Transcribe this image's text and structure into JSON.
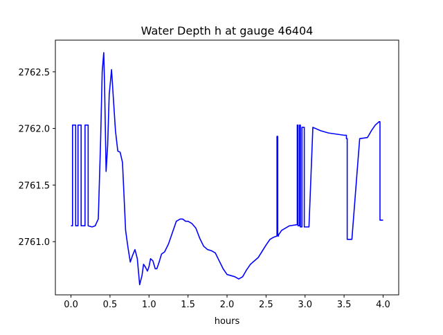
{
  "chart_data": {
    "type": "line",
    "title": "Water Depth h at gauge 46404",
    "xlabel": "hours",
    "ylabel": "",
    "xlim": [
      -0.2,
      4.2
    ],
    "ylim": [
      2760.53,
      2762.78
    ],
    "xticks": [
      0.0,
      0.5,
      1.0,
      1.5,
      2.0,
      2.5,
      3.0,
      3.5,
      4.0
    ],
    "xtick_labels": [
      "0.0",
      "0.5",
      "1.0",
      "1.5",
      "2.0",
      "2.5",
      "3.0",
      "3.5",
      "4.0"
    ],
    "yticks": [
      2761.0,
      2761.5,
      2762.0,
      2762.5
    ],
    "ytick_labels": [
      "2761.0",
      "2761.5",
      "2762.0",
      "2762.5"
    ],
    "grid": false,
    "series": [
      {
        "color": "#0000ff",
        "x": [
          0.0,
          0.02,
          0.02,
          0.06,
          0.06,
          0.09,
          0.09,
          0.13,
          0.13,
          0.18,
          0.18,
          0.22,
          0.22,
          0.27,
          0.31,
          0.35,
          0.38,
          0.4,
          0.42,
          0.43,
          0.45,
          0.47,
          0.49,
          0.52,
          0.54,
          0.57,
          0.6,
          0.63,
          0.66,
          0.68,
          0.7,
          0.73,
          0.76,
          0.79,
          0.82,
          0.85,
          0.88,
          0.91,
          0.93,
          0.95,
          0.98,
          1.0,
          1.02,
          1.05,
          1.08,
          1.1,
          1.13,
          1.16,
          1.2,
          1.25,
          1.3,
          1.35,
          1.4,
          1.43,
          1.47,
          1.5,
          1.55,
          1.6,
          1.65,
          1.7,
          1.75,
          1.8,
          1.85,
          1.9,
          1.95,
          2.0,
          2.05,
          2.1,
          2.15,
          2.2,
          2.25,
          2.3,
          2.4,
          2.5,
          2.55,
          2.6,
          2.64,
          2.64,
          2.65,
          2.65,
          2.66,
          2.66,
          2.7,
          2.8,
          2.9,
          2.9,
          2.91,
          2.91,
          2.93,
          2.93,
          2.94,
          2.94,
          2.96,
          2.96,
          2.99,
          2.99,
          3.05,
          3.1,
          3.2,
          3.3,
          3.4,
          3.5,
          3.53,
          3.53,
          3.54,
          3.54,
          3.6,
          3.7,
          3.8,
          3.85,
          3.9,
          3.95,
          3.96,
          3.96,
          4.0
        ],
        "y": [
          2761.14,
          2761.14,
          2762.03,
          2762.03,
          2761.14,
          2761.14,
          2762.03,
          2762.03,
          2761.14,
          2761.14,
          2762.03,
          2762.03,
          2761.14,
          2761.13,
          2761.14,
          2761.2,
          2761.9,
          2762.5,
          2762.67,
          2762.4,
          2761.62,
          2761.85,
          2762.3,
          2762.52,
          2762.3,
          2761.98,
          2761.8,
          2761.79,
          2761.7,
          2761.4,
          2761.1,
          2760.95,
          2760.82,
          2760.88,
          2760.93,
          2760.85,
          2760.62,
          2760.7,
          2760.8,
          2760.78,
          2760.74,
          2760.78,
          2760.85,
          2760.83,
          2760.76,
          2760.76,
          2760.82,
          2760.89,
          2760.91,
          2760.98,
          2761.08,
          2761.18,
          2761.2,
          2761.2,
          2761.18,
          2761.18,
          2761.16,
          2761.12,
          2761.03,
          2760.96,
          2760.93,
          2760.92,
          2760.9,
          2760.83,
          2760.76,
          2760.71,
          2760.7,
          2760.69,
          2760.67,
          2760.69,
          2760.75,
          2760.8,
          2760.86,
          2760.97,
          2761.02,
          2761.04,
          2761.05,
          2761.93,
          2761.93,
          2761.05,
          2761.05,
          2761.06,
          2761.1,
          2761.14,
          2761.15,
          2762.03,
          2762.03,
          2761.14,
          2761.14,
          2762.03,
          2762.03,
          2761.13,
          2761.13,
          2762.01,
          2762.01,
          2761.13,
          2761.13,
          2762.01,
          2761.98,
          2761.96,
          2761.95,
          2761.94,
          2761.94,
          2761.91,
          2761.91,
          2761.02,
          2761.02,
          2761.91,
          2761.92,
          2761.98,
          2762.03,
          2762.06,
          2762.06,
          2761.19,
          2761.19
        ]
      }
    ]
  }
}
